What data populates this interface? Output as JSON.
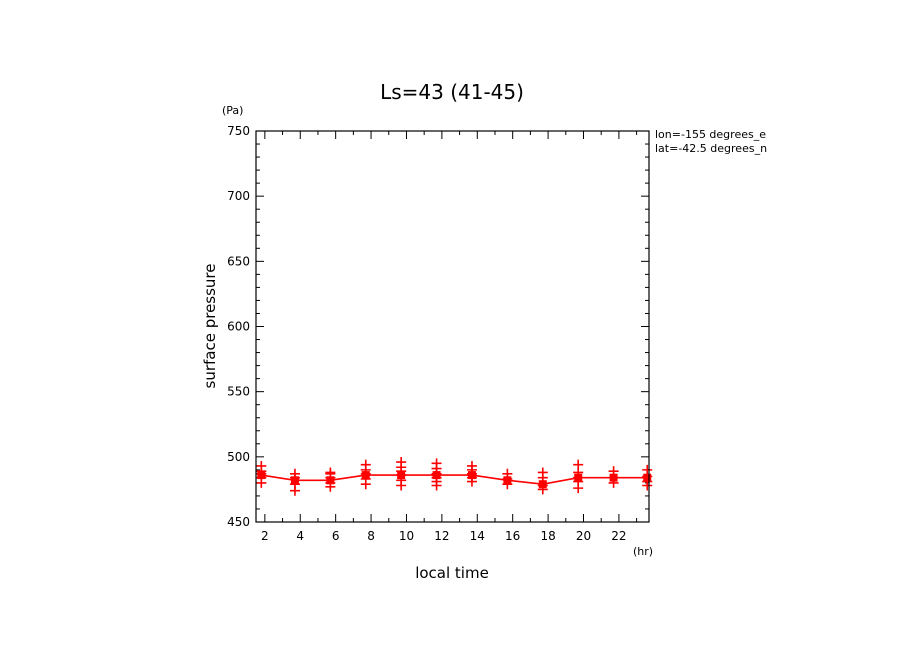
{
  "chart_data": {
    "type": "line",
    "title": "Ls=43 (41-45)",
    "xlabel": "local time",
    "ylabel": "surface pressure",
    "x_unit": "(hr)",
    "y_unit": "(Pa)",
    "xlim": [
      1.5,
      23.7
    ],
    "ylim": [
      450,
      750
    ],
    "x_ticks": [
      2,
      4,
      6,
      8,
      10,
      12,
      14,
      16,
      18,
      20,
      22
    ],
    "y_ticks": [
      450,
      500,
      550,
      600,
      650,
      700,
      750
    ],
    "info": [
      "lon=-155 degrees_e",
      "lat=-42.5 degrees_n"
    ],
    "color": "#ff0000",
    "series": [
      {
        "x": [
          1.8,
          3.7,
          5.7,
          7.7,
          9.7,
          11.7,
          13.7,
          15.7,
          17.7,
          19.7,
          21.7,
          23.6
        ],
        "values": [
          486,
          482,
          482,
          486,
          486,
          486,
          486,
          482,
          479,
          484,
          484,
          484
        ]
      }
    ],
    "scatter": [
      {
        "x": 1.8,
        "values": [
          480,
          484,
          487,
          489,
          493
        ]
      },
      {
        "x": 3.7,
        "values": [
          474,
          479,
          484,
          487
        ]
      },
      {
        "x": 5.7,
        "values": [
          477,
          480,
          484,
          487,
          488
        ]
      },
      {
        "x": 7.7,
        "values": [
          479,
          483,
          487,
          490,
          494
        ]
      },
      {
        "x": 9.7,
        "values": [
          478,
          482,
          486,
          489,
          492,
          496
        ]
      },
      {
        "x": 11.7,
        "values": [
          478,
          481,
          484,
          487,
          491,
          495
        ]
      },
      {
        "x": 13.7,
        "values": [
          481,
          484,
          487,
          490,
          493
        ]
      },
      {
        "x": 15.7,
        "values": [
          479,
          483,
          487
        ]
      },
      {
        "x": 17.7,
        "values": [
          475,
          478,
          484,
          488
        ]
      },
      {
        "x": 19.7,
        "values": [
          476,
          481,
          484,
          488,
          494
        ]
      },
      {
        "x": 21.7,
        "values": [
          480,
          484,
          489
        ]
      },
      {
        "x": 23.6,
        "values": [
          478,
          481,
          485,
          490
        ]
      }
    ]
  }
}
